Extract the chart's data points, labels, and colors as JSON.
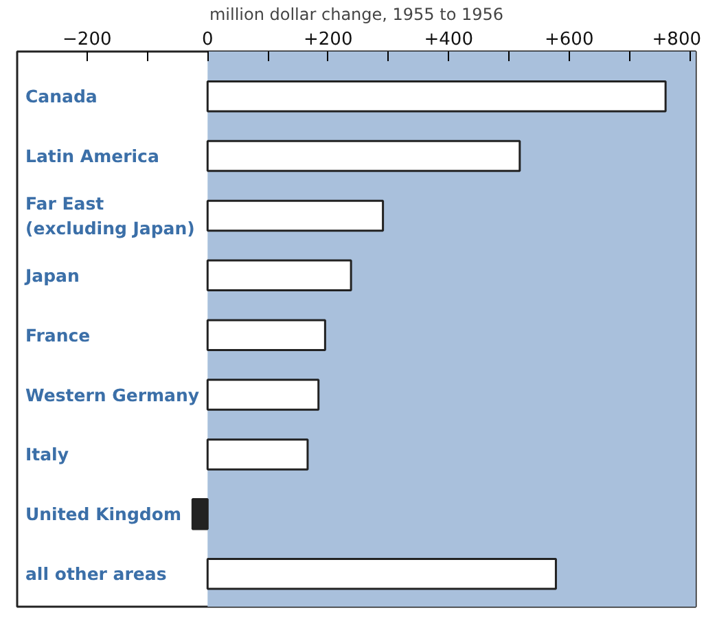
{
  "chart_data": {
    "type": "bar",
    "orientation": "horizontal",
    "xlabel": "million dollar change, 1955 to 1956",
    "categories": [
      "Canada",
      "Latin America",
      "Far East\n(excluding Japan)",
      "Japan",
      "France",
      "Western Germany",
      "Italy",
      "United Kingdom",
      "all other areas"
    ],
    "values": [
      760,
      518,
      291,
      238,
      195,
      184,
      166,
      -25,
      578
    ],
    "colors": [
      "#ffffff",
      "#ffffff",
      "#ffffff",
      "#ffffff",
      "#ffffff",
      "#ffffff",
      "#ffffff",
      "#222222",
      "#ffffff"
    ],
    "xlim": [
      -316,
      810
    ],
    "xticks": [
      {
        "value": -200,
        "label": "−200"
      },
      {
        "value": -100,
        "label": null
      },
      0,
      {
        "value": 100,
        "label": null
      },
      {
        "value": 200,
        "label": "+200"
      },
      {
        "value": 300,
        "label": null
      },
      {
        "value": 400,
        "label": "+400"
      },
      {
        "value": 500,
        "label": null
      },
      {
        "value": 600,
        "label": "+600"
      },
      {
        "value": 700,
        "label": null
      },
      {
        "value": 800,
        "label": "+800"
      }
    ],
    "bands": [
      {
        "axis": "x",
        "from": 0,
        "to": 810,
        "color": "#a9c0dc"
      }
    ],
    "grid": false
  }
}
